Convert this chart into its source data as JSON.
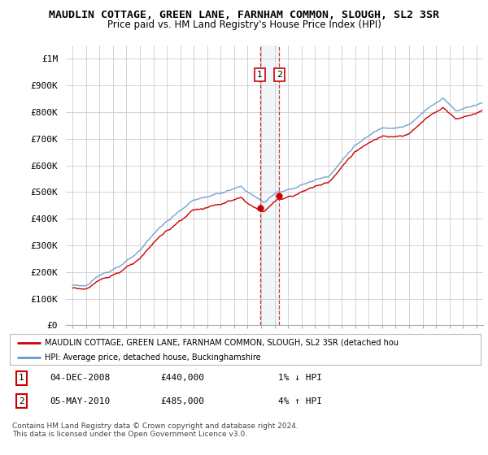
{
  "title1": "MAUDLIN COTTAGE, GREEN LANE, FARNHAM COMMON, SLOUGH, SL2 3SR",
  "title2": "Price paid vs. HM Land Registry's House Price Index (HPI)",
  "ylabel_ticks": [
    "£0",
    "£100K",
    "£200K",
    "£300K",
    "£400K",
    "£500K",
    "£600K",
    "£700K",
    "£800K",
    "£900K",
    "£1M"
  ],
  "ytick_vals": [
    0,
    100000,
    200000,
    300000,
    400000,
    500000,
    600000,
    700000,
    800000,
    900000,
    1000000
  ],
  "xlim_start": 1994.5,
  "xlim_end": 2025.5,
  "ylim": [
    0,
    1050000
  ],
  "sale1_x": 2008.92,
  "sale1_y": 440000,
  "sale2_x": 2010.36,
  "sale2_y": 485000,
  "sale1_label": "1",
  "sale2_label": "2",
  "property_color": "#cc0000",
  "hpi_color": "#6699cc",
  "shade_color": "#d8e8f5",
  "legend_property": "MAUDLIN COTTAGE, GREEN LANE, FARNHAM COMMON, SLOUGH, SL2 3SR (detached hou",
  "legend_hpi": "HPI: Average price, detached house, Buckinghamshire",
  "table_rows": [
    {
      "num": "1",
      "date": "04-DEC-2008",
      "price": "£440,000",
      "hpi": "1% ↓ HPI"
    },
    {
      "num": "2",
      "date": "05-MAY-2010",
      "price": "£485,000",
      "hpi": "4% ↑ HPI"
    }
  ],
  "footnote": "Contains HM Land Registry data © Crown copyright and database right 2024.\nThis data is licensed under the Open Government Licence v3.0.",
  "background_color": "#ffffff",
  "grid_color": "#cccccc"
}
